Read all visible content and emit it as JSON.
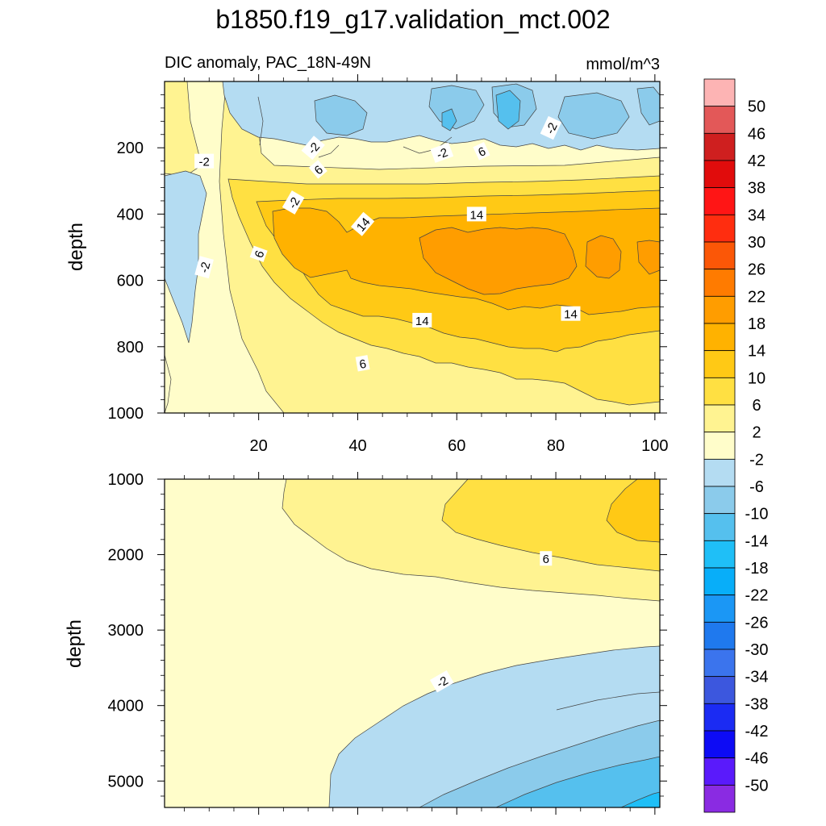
{
  "chart_data": {
    "type": "contour",
    "title": "b1850.f19_g17.validation_mct.002",
    "subtitle_left": "DIC anomaly, PAC_18N-49N",
    "units": "mmol/m^3",
    "x_range": [
      1,
      101
    ],
    "x_ticks": [
      20,
      40,
      60,
      80,
      100
    ],
    "panels": [
      {
        "name": "upper",
        "ylabel": "depth",
        "ylim": [
          0,
          1000
        ],
        "y_reversed": true,
        "y_ticks": [
          200,
          400,
          600,
          800,
          1000
        ],
        "contour_labels": [
          {
            "text": "-2",
            "x": 27,
            "depth": 365,
            "rot": -60
          },
          {
            "text": "-2",
            "x": 9,
            "depth": 240
          },
          {
            "text": "-2",
            "x": 9,
            "depth": 560,
            "rot": -75
          },
          {
            "text": "-2",
            "x": 31,
            "depth": 200,
            "rot": -50
          },
          {
            "text": "-2",
            "x": 57,
            "depth": 215,
            "rot": -20
          },
          {
            "text": "-2",
            "x": 79,
            "depth": 140,
            "rot": -65
          },
          {
            "text": "6",
            "x": 32,
            "depth": 265,
            "rot": -40
          },
          {
            "text": "6",
            "x": 65,
            "depth": 210,
            "rot": -25
          },
          {
            "text": "6",
            "x": 20,
            "depth": 520,
            "rot": -70
          },
          {
            "text": "6",
            "x": 41,
            "depth": 850,
            "rot": -10
          },
          {
            "text": "14",
            "x": 41,
            "depth": 430,
            "rot": -50
          },
          {
            "text": "14",
            "x": 64,
            "depth": 400
          },
          {
            "text": "14",
            "x": 53,
            "depth": 720
          },
          {
            "text": "14",
            "x": 83,
            "depth": 700
          }
        ]
      },
      {
        "name": "lower",
        "ylabel": "depth",
        "ylim": [
          1000,
          5350
        ],
        "y_reversed": true,
        "y_ticks": [
          1000,
          2000,
          3000,
          4000,
          5000
        ],
        "contour_labels": [
          {
            "text": "6",
            "x": 78,
            "depth": 2050
          },
          {
            "text": "-2",
            "x": 57,
            "depth": 3680,
            "rot": -30
          }
        ]
      }
    ],
    "colorbar": {
      "levels": [
        "50",
        "46",
        "42",
        "38",
        "34",
        "30",
        "26",
        "22",
        "18",
        "14",
        "10",
        "6",
        "2",
        "-2",
        "-6",
        "-10",
        "-14",
        "-18",
        "-22",
        "-26",
        "-30",
        "-34",
        "-38",
        "-42",
        "-46",
        "-50"
      ],
      "colors": [
        "#fdb4b4",
        "#e35858",
        "#cf1f1f",
        "#e10c0c",
        "#ff1515",
        "#ff2d0f",
        "#fb5707",
        "#ff7b00",
        "#ff9d00",
        "#ffb200",
        "#ffc915",
        "#ffe042",
        "#fff391",
        "#fffdca",
        "#b4dcf2",
        "#8bcbeb",
        "#55c0ee",
        "#1fbff7",
        "#08aef9",
        "#1b97f5",
        "#1f79ee",
        "#3b74ed",
        "#3c57de",
        "#1b2bf3",
        "#0d0bf5",
        "#5a1afb",
        "#8a2be2"
      ]
    }
  }
}
